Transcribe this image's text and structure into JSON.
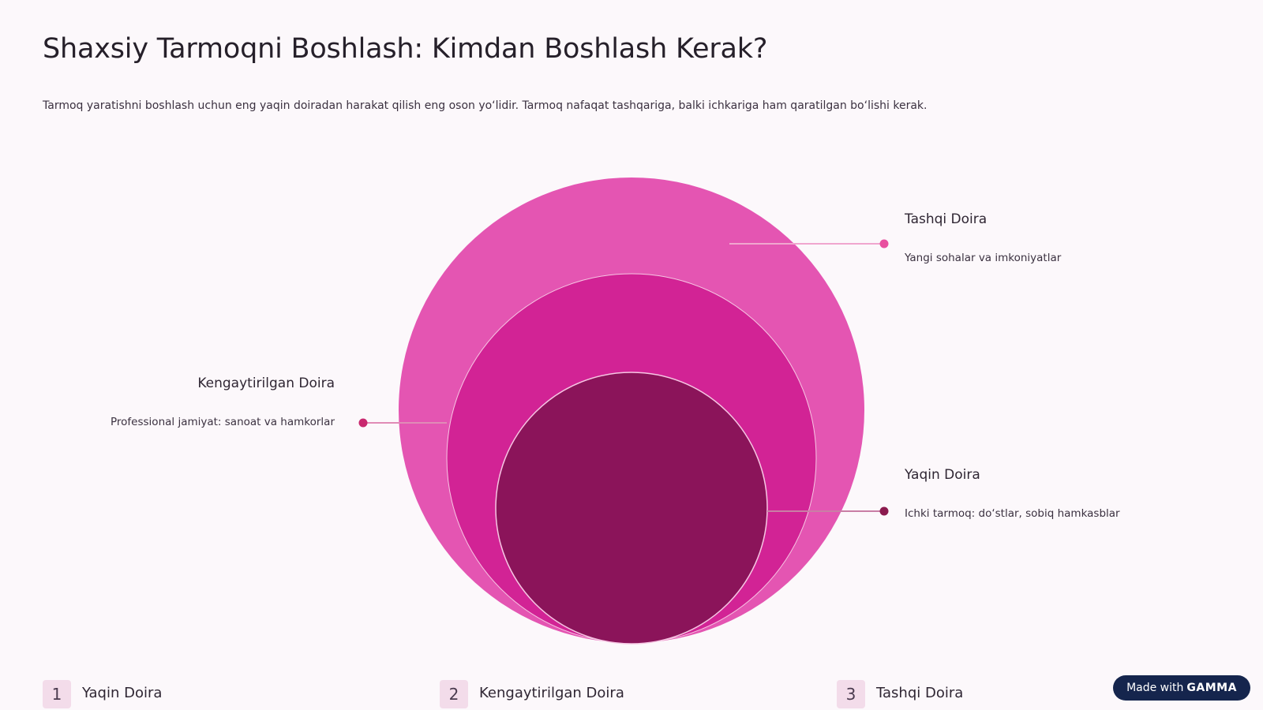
{
  "page": {
    "title": "Shaxsiy Tarmoqni Boshlash: Kimdan Boshlash Kerak?",
    "subtitle": "Tarmoq yaratishni boshlash uchun eng yaqin doiradan harakat qilish eng oson yo‘lidir. Tarmoq nafaqat tashqariga, balki ichkariga ham qaratilgan bo‘lishi kerak."
  },
  "diagram": {
    "colors": {
      "outer": "#e455b2",
      "middle": "#d22395",
      "inner": "#8b145a",
      "connector_outer": "#e8509f",
      "connector_middle": "#c8286f",
      "connector_inner": "#8b1a4e"
    },
    "circles": [
      {
        "id": "outer",
        "title": "Tashqi Doira",
        "description": "Yangi sohalar va imkoniyatlar"
      },
      {
        "id": "middle",
        "title": "Kengaytirilgan Doira",
        "description": "Professional jamiyat: sanoat va hamkorlar"
      },
      {
        "id": "inner",
        "title": "Yaqin Doira",
        "description": "Ichki tarmoq: do‘stlar, sobiq hamkasblar"
      }
    ]
  },
  "steps": [
    {
      "number": "1",
      "label": "Yaqin Doira"
    },
    {
      "number": "2",
      "label": "Kengaytirilgan Doira"
    },
    {
      "number": "3",
      "label": "Tashqi Doira"
    }
  ],
  "badge": {
    "prefix": "Made with",
    "brand": "GAMMA"
  }
}
